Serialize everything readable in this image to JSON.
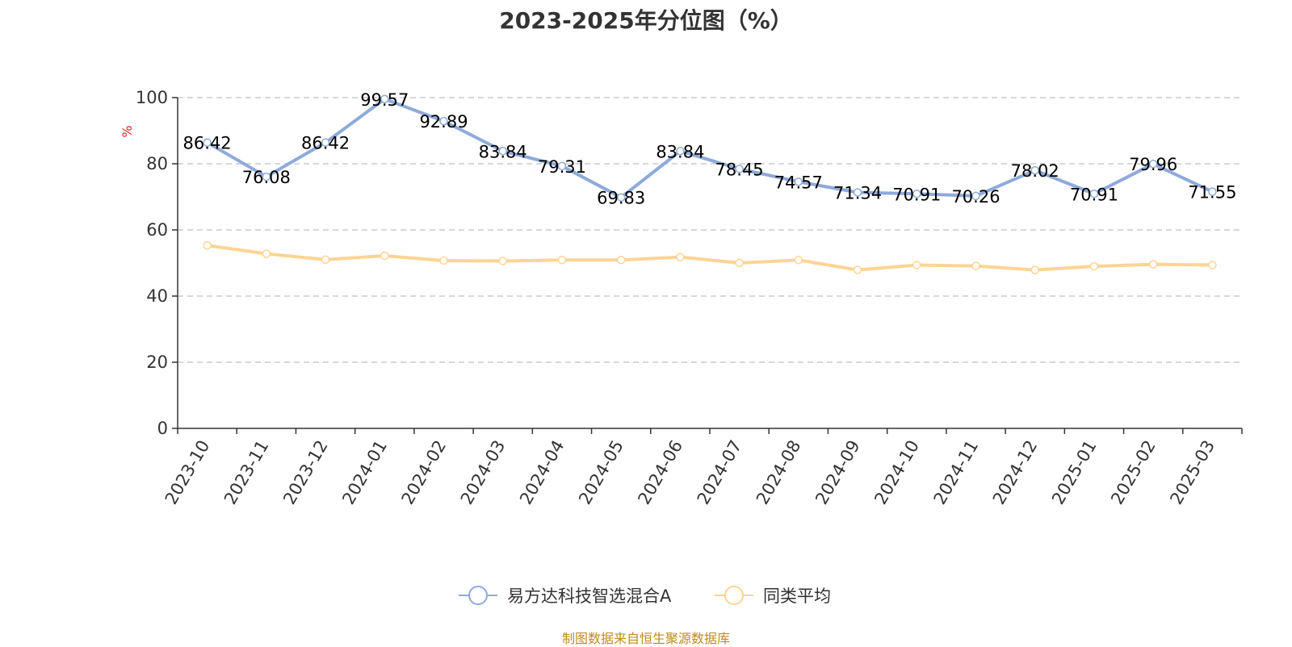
{
  "title": "2023-2025年分位图（%）",
  "source": "制图数据来自恒生聚源数据库",
  "colors": {
    "series_a": "#8eaadb",
    "series_b": "#fdd493",
    "unit": "#e02020"
  },
  "chart_data": {
    "type": "line",
    "title": "2023-2025年分位图（%）",
    "ylabel": "%",
    "ylim": [
      0,
      100
    ],
    "yticks": [
      0,
      20,
      40,
      60,
      80,
      100
    ],
    "grid": true,
    "legend": "bottom-center",
    "categories": [
      "2023-10",
      "2023-11",
      "2023-12",
      "2024-01",
      "2024-02",
      "2024-03",
      "2024-04",
      "2024-05",
      "2024-06",
      "2024-07",
      "2024-08",
      "2024-09",
      "2024-10",
      "2024-11",
      "2024-12",
      "2025-01",
      "2025-02",
      "2025-03"
    ],
    "series": [
      {
        "name": "易方达科技智选混合A",
        "color": "#8eaadb",
        "show_labels": true,
        "values": [
          86.42,
          76.08,
          86.42,
          99.57,
          92.89,
          83.84,
          79.31,
          69.83,
          83.84,
          78.45,
          74.57,
          71.34,
          70.91,
          70.26,
          78.02,
          70.91,
          79.96,
          71.55
        ]
      },
      {
        "name": "同类平均",
        "color": "#fdd493",
        "show_labels": false,
        "values": [
          55.3,
          52.8,
          51.0,
          52.2,
          50.7,
          50.6,
          50.9,
          50.9,
          51.8,
          50.0,
          50.9,
          47.9,
          49.4,
          49.1,
          47.9,
          49.0,
          49.6,
          49.4
        ]
      }
    ]
  }
}
